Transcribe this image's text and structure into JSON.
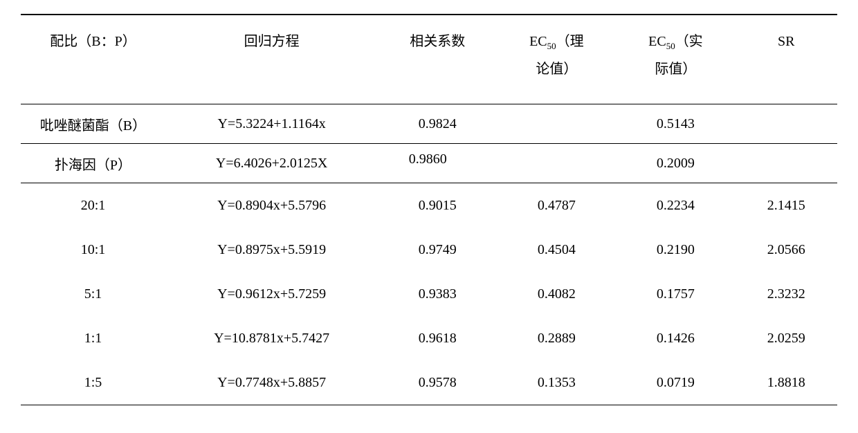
{
  "table": {
    "headers": {
      "ratio": "配比（B：P）",
      "equation": "回归方程",
      "corr": "相关系数",
      "ec50_theo_l1": "EC",
      "ec50_theo_sub": "50",
      "ec50_theo_l1b": "（理",
      "ec50_theo_l2": "论值）",
      "ec50_act_l1": "EC",
      "ec50_act_sub": "50",
      "ec50_act_l1b": "（实",
      "ec50_act_l2": "际值）",
      "sr": "SR"
    },
    "row_b": {
      "ratio": "吡唑醚菌酯（B）",
      "equation": "Y=5.3224+1.1164x",
      "corr": "0.9824",
      "ec50_theo": "",
      "ec50_act": "0.5143",
      "sr": ""
    },
    "row_p": {
      "ratio": "扑海因（P）",
      "equation": "Y=6.4026+2.0125X",
      "corr": "0.9860",
      "ec50_theo": "",
      "ec50_act": "0.2009",
      "sr": ""
    },
    "rows": [
      {
        "ratio": "20:1",
        "equation": "Y=0.8904x+5.5796",
        "corr": "0.9015",
        "ec50_theo": "0.4787",
        "ec50_act": "0.2234",
        "sr": "2.1415"
      },
      {
        "ratio": "10:1",
        "equation": "Y=0.8975x+5.5919",
        "corr": "0.9749",
        "ec50_theo": "0.4504",
        "ec50_act": "0.2190",
        "sr": "2.0566"
      },
      {
        "ratio": "5:1",
        "equation": "Y=0.9612x+5.7259",
        "corr": "0.9383",
        "ec50_theo": "0.4082",
        "ec50_act": "0.1757",
        "sr": "2.3232"
      },
      {
        "ratio": "1:1",
        "equation": "Y=10.8781x+5.7427",
        "corr": "0.9618",
        "ec50_theo": "0.2889",
        "ec50_act": "0.1426",
        "sr": "2.0259"
      },
      {
        "ratio": "1:5",
        "equation": "Y=0.7748x+5.8857",
        "corr": "0.9578",
        "ec50_theo": "0.1353",
        "ec50_act": "0.0719",
        "sr": "1.8818"
      }
    ]
  }
}
